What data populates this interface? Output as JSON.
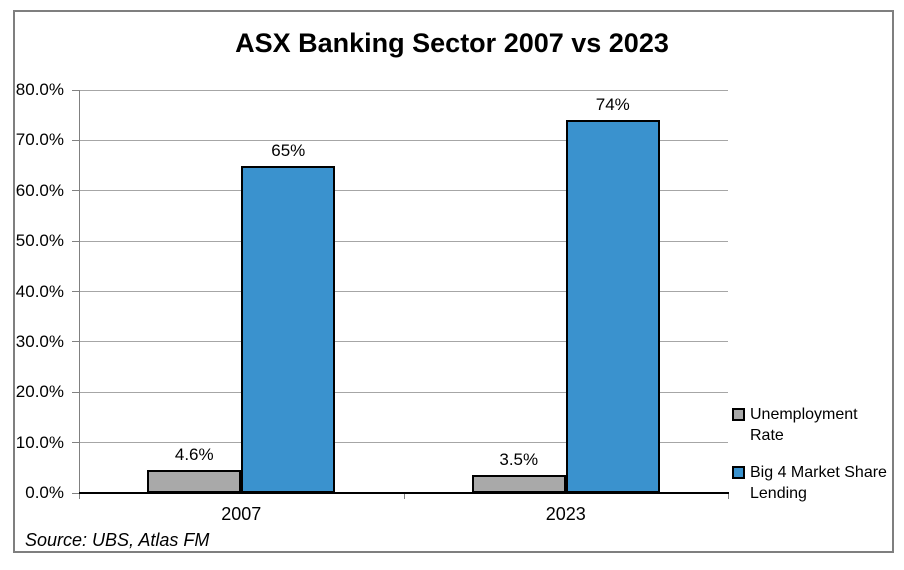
{
  "title": "ASX Banking Sector 2007 vs 2023",
  "source_note": "Source: UBS, Atlas FM",
  "colors": {
    "unemployment_gray": "#A9A9A9",
    "big4_blue": "#3A92CE",
    "bar_border": "#000000",
    "gridline": "#A6A6A6",
    "axis": "#808080",
    "frame_border": "#7F7F7F"
  },
  "chart_data": {
    "type": "bar",
    "title": "ASX Banking Sector 2007 vs 2023",
    "categories": [
      "2007",
      "2023"
    ],
    "series": [
      {
        "name": "Unemployment Rate",
        "legend_lines": [
          "Unemployment",
          "Rate"
        ],
        "color": "#A9A9A9",
        "values": [
          4.6,
          3.5
        ],
        "data_labels": [
          "4.6%",
          "3.5%"
        ]
      },
      {
        "name": "Big 4 Market Share Lending",
        "legend_lines": [
          "Big 4 Market Share",
          "Lending"
        ],
        "color": "#3A92CE",
        "values": [
          65,
          74
        ],
        "data_labels": [
          "65%",
          "74%"
        ]
      }
    ],
    "xlabel": "",
    "ylabel": "",
    "ylim": [
      0,
      80
    ],
    "ytick_labels": [
      "0.0%",
      "10.0%",
      "20.0%",
      "30.0%",
      "40.0%",
      "50.0%",
      "60.0%",
      "70.0%",
      "80.0%"
    ],
    "grid": true,
    "legend_position": "right",
    "source": "Source: UBS, Atlas FM"
  }
}
